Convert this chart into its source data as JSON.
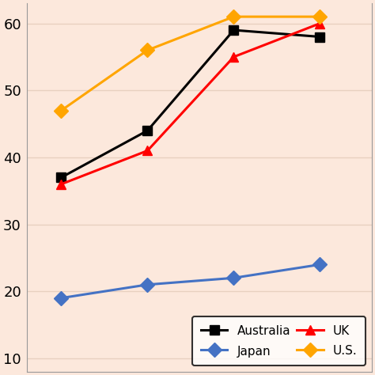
{
  "x": [
    1,
    2,
    3,
    4
  ],
  "australia": [
    37,
    44,
    59,
    58
  ],
  "japan": [
    19,
    21,
    22,
    24
  ],
  "uk": [
    36,
    41,
    55,
    60
  ],
  "us": [
    47,
    56,
    61,
    61
  ],
  "colors": {
    "australia": "#000000",
    "japan": "#4472c4",
    "uk": "#ff0000",
    "us": "#ffa500"
  },
  "markers": {
    "australia": "s",
    "japan": "D",
    "uk": "^",
    "us": "D"
  },
  "ylim": [
    8,
    63
  ],
  "yticks": [
    10,
    20,
    30,
    40,
    50,
    60
  ],
  "background_color": "#fce8dc",
  "legend_labels": [
    "Australia",
    "Japan",
    "UK",
    "U.S."
  ],
  "legend_order": [
    "australia",
    "japan",
    "uk",
    "us"
  ],
  "legend_bg": "#ffffff",
  "markersize": 9,
  "linewidth": 2.2,
  "grid_color": "#e8d0c0"
}
